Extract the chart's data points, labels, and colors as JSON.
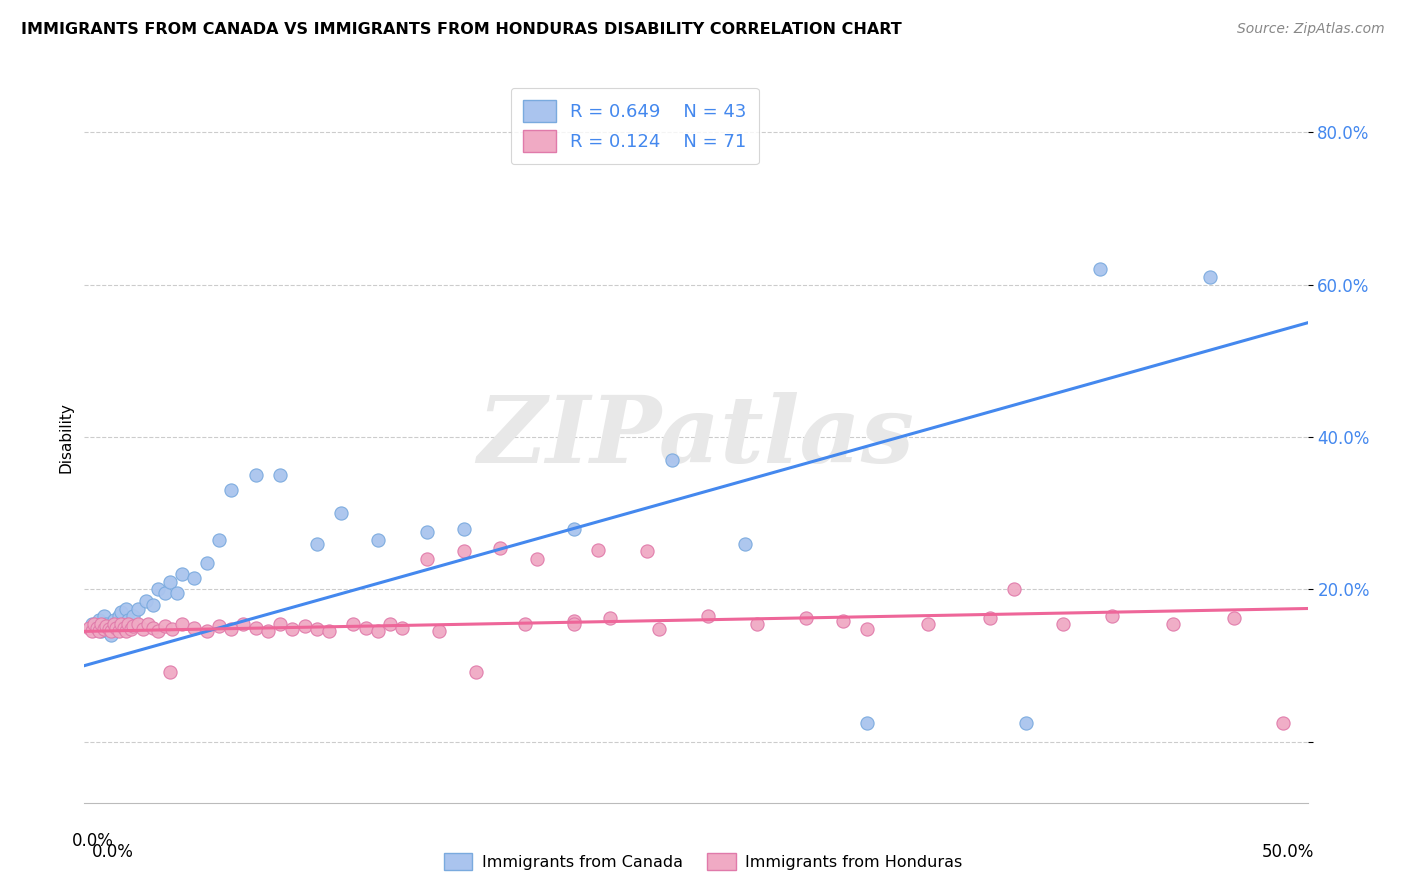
{
  "title": "IMMIGRANTS FROM CANADA VS IMMIGRANTS FROM HONDURAS DISABILITY CORRELATION CHART",
  "source": "Source: ZipAtlas.com",
  "ylabel": "Disability",
  "xlim": [
    0.0,
    0.5
  ],
  "ylim": [
    -0.08,
    0.88
  ],
  "y_ticks": [
    0.0,
    0.2,
    0.4,
    0.6,
    0.8
  ],
  "y_tick_labels": [
    "",
    "20.0%",
    "40.0%",
    "60.0%",
    "80.0%"
  ],
  "canada_color": "#aac4ee",
  "canada_edge": "#7aaade",
  "honduras_color": "#f0aac4",
  "honduras_edge": "#e07aaa",
  "canada_line_color": "#4488ee",
  "honduras_line_color": "#ee6699",
  "canada_R": 0.649,
  "canada_N": 43,
  "honduras_R": 0.124,
  "honduras_N": 71,
  "canada_line_x0": 0.0,
  "canada_line_y0": 0.1,
  "canada_line_x1": 0.5,
  "canada_line_y1": 0.55,
  "honduras_line_x0": 0.0,
  "honduras_line_y0": 0.145,
  "honduras_line_x1": 0.5,
  "honduras_line_y1": 0.175,
  "canada_scatter_x": [
    0.003,
    0.005,
    0.006,
    0.007,
    0.008,
    0.009,
    0.01,
    0.011,
    0.012,
    0.013,
    0.014,
    0.015,
    0.016,
    0.017,
    0.018,
    0.019,
    0.02,
    0.022,
    0.025,
    0.028,
    0.03,
    0.033,
    0.035,
    0.038,
    0.04,
    0.045,
    0.05,
    0.055,
    0.06,
    0.07,
    0.08,
    0.095,
    0.105,
    0.12,
    0.14,
    0.155,
    0.2,
    0.24,
    0.27,
    0.32,
    0.385,
    0.415,
    0.46
  ],
  "canada_scatter_y": [
    0.155,
    0.15,
    0.16,
    0.145,
    0.165,
    0.155,
    0.15,
    0.14,
    0.16,
    0.155,
    0.165,
    0.17,
    0.155,
    0.175,
    0.16,
    0.155,
    0.165,
    0.175,
    0.185,
    0.18,
    0.2,
    0.195,
    0.21,
    0.195,
    0.22,
    0.215,
    0.235,
    0.265,
    0.33,
    0.35,
    0.35,
    0.26,
    0.3,
    0.265,
    0.275,
    0.28,
    0.28,
    0.37,
    0.26,
    0.025,
    0.025,
    0.62,
    0.61
  ],
  "honduras_scatter_x": [
    0.002,
    0.003,
    0.004,
    0.005,
    0.006,
    0.007,
    0.008,
    0.009,
    0.01,
    0.011,
    0.012,
    0.013,
    0.014,
    0.015,
    0.016,
    0.017,
    0.018,
    0.019,
    0.02,
    0.022,
    0.024,
    0.026,
    0.028,
    0.03,
    0.033,
    0.036,
    0.04,
    0.045,
    0.05,
    0.055,
    0.06,
    0.065,
    0.07,
    0.075,
    0.08,
    0.085,
    0.09,
    0.095,
    0.1,
    0.11,
    0.115,
    0.12,
    0.125,
    0.13,
    0.145,
    0.16,
    0.18,
    0.2,
    0.215,
    0.235,
    0.255,
    0.275,
    0.295,
    0.32,
    0.345,
    0.37,
    0.4,
    0.42,
    0.445,
    0.47,
    0.14,
    0.155,
    0.17,
    0.185,
    0.2,
    0.21,
    0.23,
    0.31,
    0.38,
    0.49,
    0.035
  ],
  "honduras_scatter_y": [
    0.15,
    0.145,
    0.155,
    0.15,
    0.145,
    0.155,
    0.148,
    0.152,
    0.148,
    0.145,
    0.155,
    0.15,
    0.145,
    0.155,
    0.15,
    0.145,
    0.155,
    0.148,
    0.152,
    0.155,
    0.148,
    0.155,
    0.15,
    0.145,
    0.152,
    0.148,
    0.155,
    0.15,
    0.145,
    0.152,
    0.148,
    0.155,
    0.15,
    0.145,
    0.155,
    0.148,
    0.152,
    0.148,
    0.145,
    0.155,
    0.15,
    0.145,
    0.155,
    0.15,
    0.145,
    0.092,
    0.155,
    0.158,
    0.162,
    0.148,
    0.165,
    0.155,
    0.162,
    0.148,
    0.155,
    0.162,
    0.155,
    0.165,
    0.155,
    0.162,
    0.24,
    0.25,
    0.255,
    0.24,
    0.155,
    0.252,
    0.25,
    0.158,
    0.2,
    0.025,
    0.092
  ],
  "watermark_text": "ZIPatlas",
  "background_color": "#ffffff",
  "grid_color": "#cccccc"
}
